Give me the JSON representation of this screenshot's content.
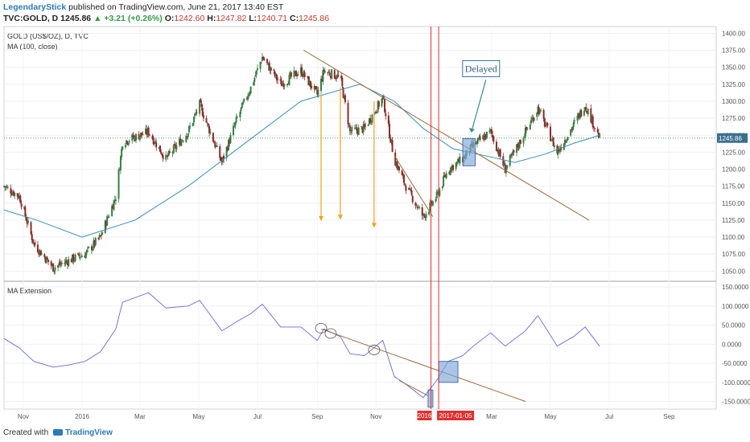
{
  "header": {
    "author": "LegendaryStick",
    "published": "published on TradingView.com, June 21, 2017 13:40 EST",
    "symbol": "TVC:GOLD, D",
    "last": "1245.86",
    "change": "▲ +3.21 (+0.26%)",
    "o_label": "O:",
    "o": "1242.60",
    "h_label": "H:",
    "h": "1247.82",
    "l_label": "L:",
    "l": "1240.71",
    "c_label": "C:",
    "c": "1245.86"
  },
  "footer": {
    "created": "Created with",
    "brand": "TradingView"
  },
  "colors": {
    "ma": "#3a8fb7",
    "ext": "#6a6ad8",
    "trend": "#9b6a3c",
    "arrows": "#f0a020",
    "vline": "#e03030",
    "box": "#7da7d9",
    "up": "#3a7d44",
    "down": "#8b2a2a"
  },
  "chart_data": [
    {
      "type": "candlestick",
      "title": "GOLD (US$/OZ), D, TVC",
      "subtitle": "MA (100, close)",
      "y_ticks": [
        1050,
        1075,
        1100,
        1125,
        1150,
        1175,
        1200,
        1225,
        1250,
        1275,
        1300,
        1325,
        1350,
        1375,
        1400
      ],
      "ylim": [
        1035,
        1410
      ],
      "last_value_label": "1245.86",
      "last_value": 1245.86,
      "x_ticks": [
        "Nov",
        "2016",
        "Mar",
        "May",
        "Jul",
        "Sep",
        "Nov",
        "Mar",
        "May",
        "Jul",
        "Sep"
      ],
      "x_tick_dates": [
        "2015-11-01",
        "2016-01-01",
        "2016-03-01",
        "2016-05-01",
        "2016-07-01",
        "2016-09-01",
        "2016-11-01",
        "2017-03-01",
        "2017-05-01",
        "2017-07-01",
        "2017-09-01"
      ],
      "x_range": [
        "2015-10-12",
        "2017-10-20"
      ],
      "price_path": [
        [
          "2015-10-12",
          1175
        ],
        [
          "2015-10-28",
          1160
        ],
        [
          "2015-11-12",
          1090
        ],
        [
          "2015-12-02",
          1055
        ],
        [
          "2015-12-17",
          1065
        ],
        [
          "2016-01-04",
          1075
        ],
        [
          "2016-01-20",
          1100
        ],
        [
          "2016-02-05",
          1160
        ],
        [
          "2016-02-12",
          1240
        ],
        [
          "2016-03-10",
          1255
        ],
        [
          "2016-03-28",
          1215
        ],
        [
          "2016-04-20",
          1255
        ],
        [
          "2016-05-02",
          1295
        ],
        [
          "2016-05-25",
          1210
        ],
        [
          "2016-06-10",
          1275
        ],
        [
          "2016-06-24",
          1320
        ],
        [
          "2016-07-06",
          1365
        ],
        [
          "2016-07-25",
          1325
        ],
        [
          "2016-08-15",
          1345
        ],
        [
          "2016-09-01",
          1310
        ],
        [
          "2016-09-08",
          1345
        ],
        [
          "2016-09-25",
          1335
        ],
        [
          "2016-10-05",
          1255
        ],
        [
          "2016-10-20",
          1260
        ],
        [
          "2016-11-08",
          1305
        ],
        [
          "2016-11-20",
          1215
        ],
        [
          "2016-12-02",
          1175
        ],
        [
          "2016-12-20",
          1130
        ],
        [
          "2017-01-03",
          1160
        ],
        [
          "2017-01-15",
          1200
        ],
        [
          "2017-01-30",
          1215
        ],
        [
          "2017-02-10",
          1235
        ],
        [
          "2017-02-28",
          1255
        ],
        [
          "2017-03-15",
          1200
        ],
        [
          "2017-04-05",
          1255
        ],
        [
          "2017-04-18",
          1290
        ],
        [
          "2017-05-08",
          1225
        ],
        [
          "2017-05-25",
          1265
        ],
        [
          "2017-06-06",
          1295
        ],
        [
          "2017-06-21",
          1245.86
        ]
      ],
      "ma_series": {
        "name": "MA (100, close)",
        "points": [
          [
            "2015-10-12",
            1140
          ],
          [
            "2015-11-15",
            1125
          ],
          [
            "2016-01-01",
            1100
          ],
          [
            "2016-02-25",
            1125
          ],
          [
            "2016-04-20",
            1175
          ],
          [
            "2016-06-15",
            1235
          ],
          [
            "2016-08-15",
            1300
          ],
          [
            "2016-10-15",
            1325
          ],
          [
            "2016-11-20",
            1300
          ],
          [
            "2016-12-20",
            1260
          ],
          [
            "2017-01-20",
            1230
          ],
          [
            "2017-02-28",
            1218
          ],
          [
            "2017-03-25",
            1210
          ],
          [
            "2017-04-25",
            1222
          ],
          [
            "2017-05-25",
            1238
          ],
          [
            "2017-06-21",
            1250
          ]
        ]
      },
      "trendlines": [
        {
          "from": [
            "2016-08-18",
            1375
          ],
          "to": [
            "2017-06-10",
            1125
          ]
        },
        {
          "from": [
            "2016-11-20",
            1220
          ],
          "to": [
            "2016-12-30",
            1130
          ]
        }
      ],
      "arrows": [
        {
          "date": "2016-09-05",
          "from": 1310,
          "to": 1125
        },
        {
          "date": "2016-09-25",
          "from": 1320,
          "to": 1127
        },
        {
          "date": "2016-10-30",
          "from": 1300,
          "to": 1115
        }
      ],
      "annotation": {
        "text": "Delayed",
        "box_center": [
          "2017-02-18",
          1348
        ],
        "arrow_to": [
          "2017-02-08",
          1255
        ]
      },
      "highlight_box": {
        "x0": "2017-01-30",
        "x1": "2017-02-12",
        "y0": 1205,
        "y1": 1245
      }
    },
    {
      "type": "line",
      "title": "MA Extension",
      "y_ticks": [
        -150,
        -100,
        -50,
        0,
        50,
        100,
        150
      ],
      "y_tick_labels": [
        "-150.0000",
        "-100.0000",
        "-50.0000",
        "0.0000",
        "50.0000",
        "100.0000",
        "150.0000"
      ],
      "ylim": [
        -170,
        165
      ],
      "series": [
        {
          "values": [
            [
              "2015-10-12",
              15
            ],
            [
              "2015-10-28",
              -10
            ],
            [
              "2015-11-12",
              -45
            ],
            [
              "2015-12-02",
              -60
            ],
            [
              "2015-12-17",
              -55
            ],
            [
              "2016-01-04",
              -45
            ],
            [
              "2016-01-20",
              -20
            ],
            [
              "2016-02-05",
              40
            ],
            [
              "2016-02-12",
              110
            ],
            [
              "2016-03-10",
              135
            ],
            [
              "2016-03-28",
              95
            ],
            [
              "2016-04-20",
              100
            ],
            [
              "2016-05-02",
              115
            ],
            [
              "2016-05-25",
              35
            ],
            [
              "2016-06-10",
              60
            ],
            [
              "2016-06-24",
              80
            ],
            [
              "2016-07-06",
              105
            ],
            [
              "2016-07-25",
              45
            ],
            [
              "2016-08-15",
              45
            ],
            [
              "2016-09-01",
              10
            ],
            [
              "2016-09-08",
              40
            ],
            [
              "2016-09-25",
              20
            ],
            [
              "2016-10-05",
              -25
            ],
            [
              "2016-10-20",
              -30
            ],
            [
              "2016-11-08",
              10
            ],
            [
              "2016-11-20",
              -85
            ],
            [
              "2016-12-02",
              -105
            ],
            [
              "2016-12-20",
              -140
            ],
            [
              "2017-01-03",
              -95
            ],
            [
              "2017-01-15",
              -45
            ],
            [
              "2017-01-30",
              -30
            ],
            [
              "2017-02-10",
              -5
            ],
            [
              "2017-02-28",
              30
            ],
            [
              "2017-03-15",
              -5
            ],
            [
              "2017-04-05",
              35
            ],
            [
              "2017-04-18",
              75
            ],
            [
              "2017-05-08",
              -5
            ],
            [
              "2017-05-25",
              20
            ],
            [
              "2017-06-06",
              45
            ],
            [
              "2017-06-21",
              -5
            ]
          ]
        }
      ],
      "trendlines": [
        {
          "from": [
            "2016-09-05",
            40
          ],
          "to": [
            "2017-04-05",
            -150
          ]
        },
        {
          "from": [
            "2016-11-25",
            -95
          ],
          "to": [
            "2016-12-25",
            -135
          ]
        }
      ],
      "circles": [
        {
          "date": "2016-09-05",
          "value": 42
        },
        {
          "date": "2016-09-15",
          "value": 28
        },
        {
          "date": "2016-10-30",
          "value": -15
        }
      ],
      "highlight_boxes": [
        {
          "x0": "2016-12-25",
          "x1": "2016-12-30",
          "y0": -165,
          "y1": -120
        },
        {
          "x0": "2017-01-05",
          "x1": "2017-01-25",
          "y0": -100,
          "y1": -45
        }
      ]
    }
  ],
  "markers": {
    "vlines": [
      "2016-12-28",
      "2017-01-05"
    ],
    "x_label_left": "2016",
    "x_label_right": "2017-01-05"
  }
}
